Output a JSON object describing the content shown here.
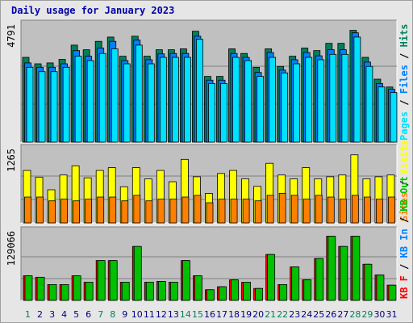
{
  "title": "Daily usage for January 2023",
  "colors": {
    "background": "#e6e6e6",
    "panel": "#c0c0c0",
    "hits": "#00805c",
    "files": "#0080ff",
    "pages": "#00e0ff",
    "visits": "#ffff00",
    "sites": "#ff8000",
    "kbin": "#0080ff",
    "kbout": "#00c000",
    "kbf": "#ff0000",
    "weekday_label": "#000080",
    "weekend_label": "#00805c"
  },
  "chart_data": [
    {
      "type": "bar",
      "panel": "top",
      "ymax_label": "4791",
      "ylim": [
        0,
        4791
      ],
      "categories": [
        "1",
        "2",
        "3",
        "4",
        "5",
        "6",
        "7",
        "8",
        "9",
        "10",
        "11",
        "12",
        "13",
        "14",
        "15",
        "16",
        "17",
        "18",
        "19",
        "20",
        "21",
        "22",
        "23",
        "24",
        "25",
        "26",
        "27",
        "28",
        "29",
        "30",
        "31"
      ],
      "weekend_days": [
        "1",
        "7",
        "8",
        "14",
        "15",
        "21",
        "22",
        "28",
        "29"
      ],
      "legend": [
        {
          "label": "Hits",
          "color": "#00805c"
        },
        {
          "label": "Files",
          "color": "#0080ff"
        },
        {
          "label": "Pages",
          "color": "#00e0ff"
        }
      ],
      "series": [
        {
          "name": "Hits",
          "values": [
            3567,
            3296,
            3333,
            3481,
            4082,
            3887,
            4240,
            4420,
            3615,
            4456,
            3615,
            3887,
            3887,
            3926,
            4666,
            2765,
            2765,
            3926,
            3731,
            3148,
            3926,
            3185,
            3615,
            3960,
            3851,
            4157,
            4157,
            4704,
            3567,
            2650,
            2320
          ]
        },
        {
          "name": "Files",
          "values": [
            3333,
            3148,
            3148,
            3296,
            3851,
            3615,
            3960,
            4240,
            3431,
            4292,
            3467,
            3712,
            3731,
            3731,
            4457,
            2607,
            2607,
            3731,
            3567,
            2931,
            3772,
            3030,
            3467,
            3772,
            3632,
            3889,
            3889,
            4599,
            3368,
            2466,
            2219
          ]
        },
        {
          "name": "Pages",
          "values": [
            3148,
            2966,
            2966,
            3148,
            3615,
            3431,
            3731,
            3926,
            3296,
            4082,
            3296,
            3567,
            3567,
            3567,
            4328,
            2466,
            2466,
            3567,
            3431,
            2765,
            3567,
            2913,
            3296,
            3567,
            3467,
            3693,
            3693,
            4420,
            3185,
            2320,
            2085
          ]
        }
      ]
    },
    {
      "type": "bar",
      "panel": "middle",
      "ymax_label": "1265",
      "ylim": [
        0,
        1265
      ],
      "categories": [
        "1",
        "2",
        "3",
        "4",
        "5",
        "6",
        "7",
        "8",
        "9",
        "10",
        "11",
        "12",
        "13",
        "14",
        "15",
        "16",
        "17",
        "18",
        "19",
        "20",
        "21",
        "22",
        "23",
        "24",
        "25",
        "26",
        "27",
        "28",
        "29",
        "30",
        "31"
      ],
      "legend": [
        {
          "label": "Visits",
          "color": "#ffff00"
        },
        {
          "label": "Sites",
          "color": "#ff8000"
        }
      ],
      "series": [
        {
          "name": "Visits",
          "values": [
            944,
            824,
            596,
            862,
            1027,
            811,
            944,
            995,
            650,
            995,
            793,
            944,
            741,
            1144,
            830,
            530,
            889,
            944,
            793,
            657,
            1073,
            862,
            793,
            995,
            793,
            830,
            862,
            1225,
            793,
            830,
            862
          ]
        },
        {
          "name": "Sites",
          "values": [
            465,
            465,
            397,
            428,
            397,
            428,
            465,
            465,
            397,
            496,
            397,
            428,
            428,
            465,
            496,
            363,
            428,
            428,
            428,
            397,
            496,
            533,
            496,
            428,
            496,
            465,
            428,
            496,
            465,
            428,
            465
          ]
        }
      ]
    },
    {
      "type": "bar",
      "panel": "bottom",
      "ymax_label": "129066",
      "ylim": [
        0,
        129066
      ],
      "categories": [
        "1",
        "2",
        "3",
        "4",
        "5",
        "6",
        "7",
        "8",
        "9",
        "10",
        "11",
        "12",
        "13",
        "14",
        "15",
        "16",
        "17",
        "18",
        "19",
        "20",
        "21",
        "22",
        "23",
        "24",
        "25",
        "26",
        "27",
        "28",
        "29",
        "30",
        "31"
      ],
      "legend": [
        {
          "label": "Visits",
          "color": "#ffff00"
        },
        {
          "label": "KB F",
          "color": "#ff0000"
        },
        {
          "label": "KB In",
          "color": "#0080ff"
        },
        {
          "label": "KB Out",
          "color": "#00c000"
        }
      ],
      "series": [
        {
          "name": "KB F",
          "values": [
            48627,
            45626,
            31226,
            31226,
            48627,
            35966,
            78627,
            78627,
            35966,
            106425,
            35966,
            37512,
            35966,
            78627,
            48627,
            21066,
            26967,
            40583,
            35966,
            23542,
            90621,
            31226,
            66054,
            40583,
            82562,
            126538,
            106425,
            126538,
            71316,
            50168,
            30017
          ]
        },
        {
          "name": "KB In",
          "values": [
            0,
            0,
            0,
            0,
            0,
            0,
            0,
            0,
            0,
            0,
            0,
            0,
            0,
            0,
            0,
            0,
            0,
            0,
            0,
            0,
            0,
            0,
            0,
            0,
            0,
            0,
            0,
            0,
            0,
            0,
            0
          ]
        },
        {
          "name": "KB Out",
          "values": [
            48627,
            45626,
            31226,
            31226,
            48627,
            35966,
            78627,
            78627,
            35966,
            106425,
            35966,
            37512,
            35966,
            78627,
            48627,
            21066,
            26967,
            40583,
            35966,
            23542,
            90621,
            31226,
            66054,
            40583,
            82562,
            126538,
            106425,
            126538,
            71316,
            50168,
            30017
          ]
        }
      ]
    }
  ]
}
